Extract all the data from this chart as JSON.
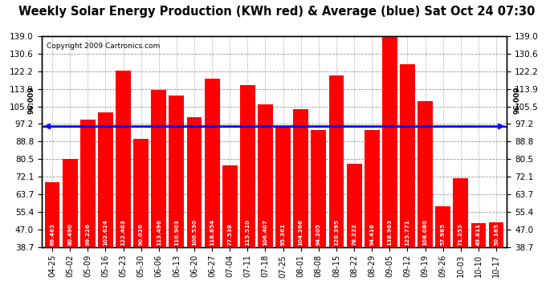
{
  "title": "Weekly Solar Energy Production (KWh red) & Average (blue) Sat Oct 24 07:30",
  "copyright": "Copyright 2009 Cartronics.com",
  "categories": [
    "04-25",
    "05-02",
    "05-09",
    "05-16",
    "05-23",
    "05-30",
    "06-06",
    "06-13",
    "06-20",
    "06-27",
    "07-04",
    "07-11",
    "07-18",
    "07-25",
    "08-01",
    "08-08",
    "08-15",
    "08-22",
    "08-29",
    "09-05",
    "09-12",
    "09-19",
    "09-26",
    "10-03",
    "10-10",
    "10-17"
  ],
  "values": [
    69.463,
    80.49,
    99.226,
    102.624,
    122.463,
    90.026,
    113.496,
    110.903,
    100.53,
    118.654,
    77.538,
    115.51,
    106.407,
    95.361,
    104.266,
    94.205,
    120.395,
    78.222,
    94.416,
    138.963,
    125.771,
    108.08,
    57.985,
    71.253,
    49.811,
    50.165
  ],
  "average": 96.009,
  "bar_color": "#ff0000",
  "average_color": "#0000ff",
  "background_color": "#ffffff",
  "plot_bg_color": "#ffffff",
  "grid_color": "#999999",
  "ylim_min": 38.7,
  "ylim_max": 139.0,
  "yticks": [
    38.7,
    47.0,
    55.4,
    63.7,
    72.1,
    80.5,
    88.8,
    97.2,
    105.5,
    113.9,
    122.2,
    130.6,
    139.0
  ],
  "avg_label": "96.009",
  "title_fontsize": 10.5,
  "copyright_fontsize": 6.5,
  "bar_label_fontsize": 5.2,
  "tick_fontsize": 7.5
}
